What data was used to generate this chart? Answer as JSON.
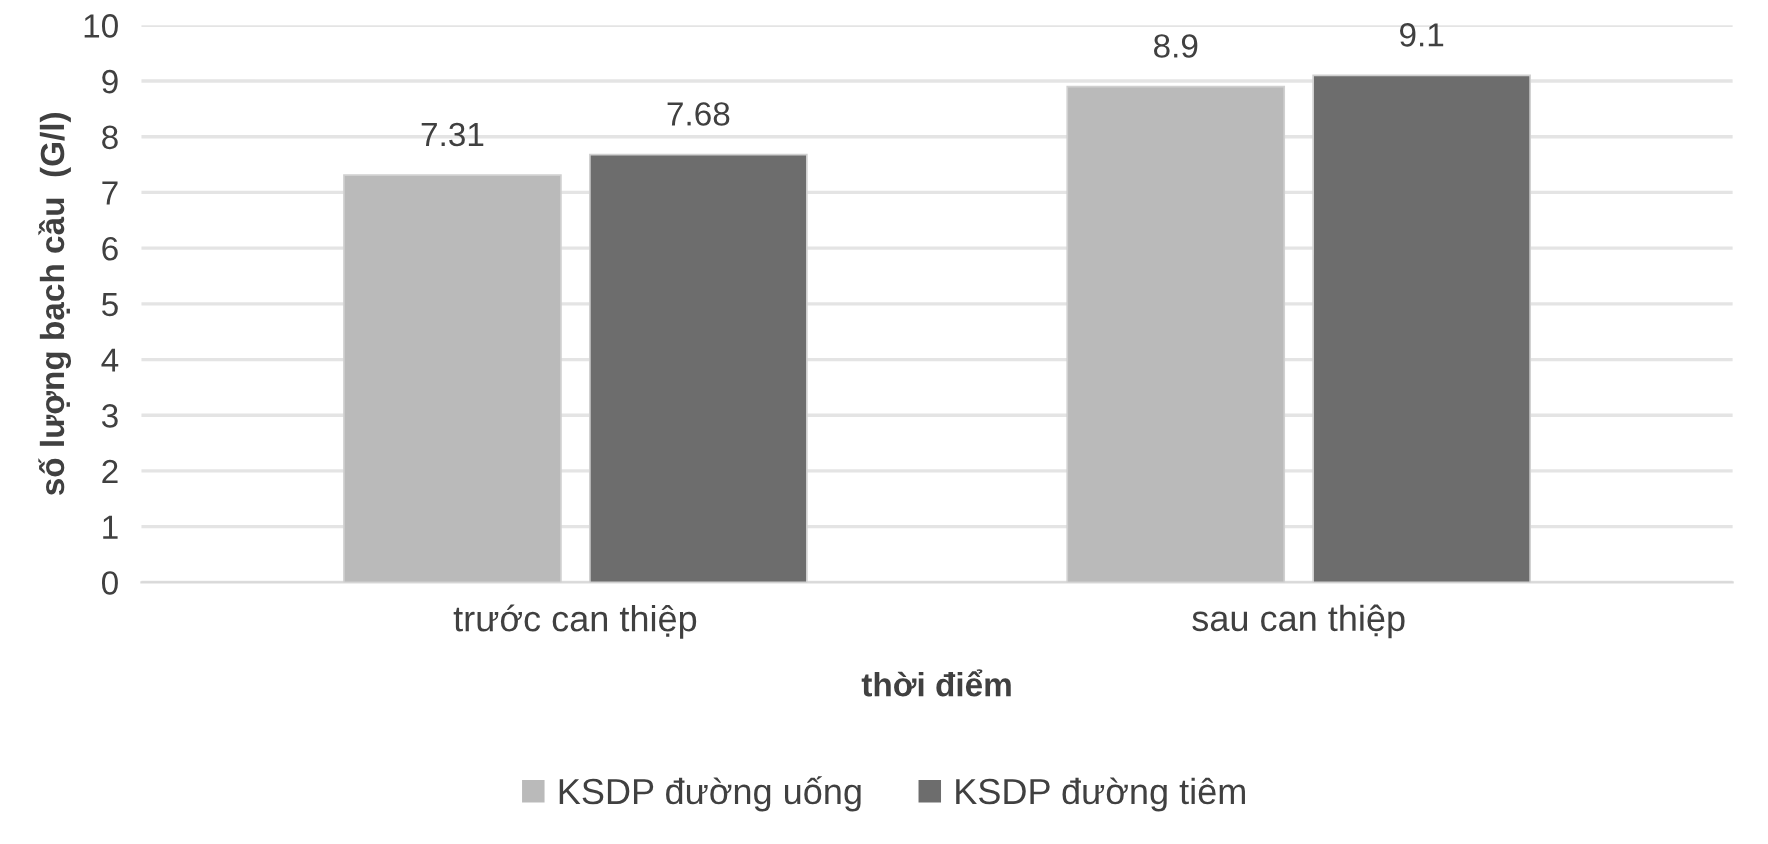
{
  "chart_data": {
    "type": "bar",
    "xlabel": "thời điểm",
    "ylabel": "số lượng bạch cầu  (G/l)",
    "categories": [
      "trước can thiệp",
      "sau can thiệp"
    ],
    "series": [
      {
        "name": "KSDP đường uống",
        "color": "#bababa",
        "values": [
          7.31,
          8.9
        ]
      },
      {
        "name": "KSDP đường tiêm",
        "color": "#6d6d6d",
        "values": [
          7.68,
          9.1
        ]
      }
    ],
    "ylim": [
      0,
      10
    ],
    "yticks": [
      0,
      1,
      2,
      3,
      4,
      5,
      6,
      7,
      8,
      9,
      10
    ],
    "grid": "y",
    "legend": "bottom",
    "data_labels": true
  }
}
